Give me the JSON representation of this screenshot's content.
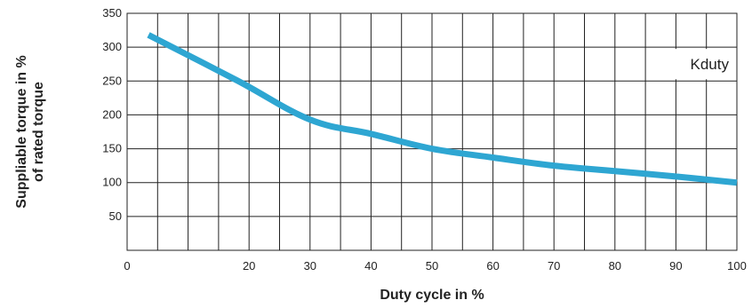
{
  "chart_data": {
    "type": "line",
    "title": "",
    "xlabel": "Duty cycle in %",
    "ylabel_lines": [
      "Suppliable torque in %",
      "of rated torque"
    ],
    "xlim": [
      0,
      100
    ],
    "ylim": [
      0,
      350
    ],
    "x_ticks": [
      0,
      20,
      30,
      40,
      50,
      60,
      70,
      80,
      90,
      100
    ],
    "y_ticks": [
      50,
      100,
      150,
      200,
      250,
      300,
      350
    ],
    "grid": true,
    "legend_position": "top-right",
    "series": [
      {
        "name": "Kduty",
        "color": "#2ea6d2",
        "x": [
          3.5,
          18,
          30,
          40,
          50,
          60,
          70,
          80,
          90,
          100
        ],
        "y": [
          318,
          251,
          193,
          172,
          150,
          137,
          125,
          117,
          109,
          100
        ]
      }
    ]
  }
}
